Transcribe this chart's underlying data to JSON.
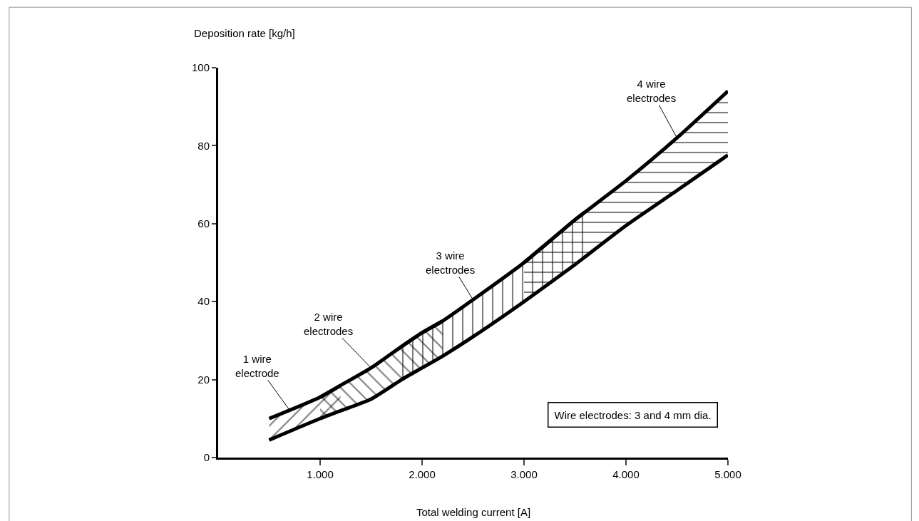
{
  "chart_data": {
    "type": "line",
    "xlabel": "Total welding current [A]",
    "ylabel": "Deposition rate [kg/h]",
    "xlim": [
      0,
      5000
    ],
    "xticks": [
      {
        "value": 1000,
        "label": "1.000"
      },
      {
        "value": 2000,
        "label": "2.000"
      },
      {
        "value": 3000,
        "label": "3.000"
      },
      {
        "value": 4000,
        "label": "4.000"
      },
      {
        "value": 5000,
        "label": "5.000"
      }
    ],
    "ylim": [
      0,
      100
    ],
    "yticks": [
      0,
      20,
      40,
      60,
      80,
      100
    ],
    "marker": "none",
    "line_style": "solid",
    "series": [
      {
        "color": "#000000",
        "x": [
          500,
          1000,
          1200,
          1500,
          1800,
          2000,
          2200,
          2500,
          3000,
          3500,
          3600,
          4000,
          4500,
          5000
        ],
        "values": [
          4.5,
          10,
          12,
          15,
          20,
          23,
          26,
          31,
          40,
          49.5,
          51.5,
          59.5,
          68.5,
          77.6
        ]
      },
      {
        "color": "#000000",
        "x": [
          500,
          1000,
          1200
        ],
        "values": [
          10,
          15.5,
          18.5
        ],
        "upper": [
          10,
          15.5,
          18.5
        ],
        "lower": [
          4.5,
          10,
          12
        ]
      },
      {
        "color": "#000000",
        "x": [
          1000,
          1200,
          1500,
          1800,
          2000,
          2200
        ],
        "values": [
          15.5,
          18.5,
          23,
          28.5,
          32,
          35
        ],
        "upper": [
          15.5,
          18.5,
          23,
          28.5,
          32,
          35
        ],
        "lower": [
          10,
          12,
          15,
          20,
          23,
          26
        ]
      },
      {
        "color": "#000000",
        "x": [
          1800,
          2000,
          2200,
          2500,
          3000,
          3500,
          3600
        ],
        "values": [
          28.5,
          32,
          35,
          40.5,
          50,
          61,
          63
        ],
        "upper": [
          28.5,
          32,
          35,
          40.5,
          50,
          61,
          63
        ],
        "lower": [
          20,
          23,
          26,
          31,
          40,
          49.5,
          51.5
        ]
      },
      {
        "color": "#000000",
        "x": [
          3000,
          3500,
          3600,
          4000,
          4500,
          5000
        ],
        "values": [
          50,
          61,
          63,
          71,
          82,
          94
        ],
        "upper": [
          50,
          61,
          63,
          71,
          82,
          94
        ],
        "lower": [
          40,
          49.5,
          51.5,
          59.5,
          68.5,
          77.6
        ]
      }
    ],
    "annotations": [
      {
        "text": "1 wire\nelectrode",
        "x": 700,
        "y": 12.2
      },
      {
        "text": "2 wire\nelectrodes",
        "x": 1500,
        "y": 23
      },
      {
        "text": "3 wire\nelectrodes",
        "x": 2500,
        "y": 40.5
      },
      {
        "text": "4 wire\nelectrodes",
        "x": 4500,
        "y": 82
      },
      "Wire electrodes: 3 and 4 mm dia."
    ]
  }
}
